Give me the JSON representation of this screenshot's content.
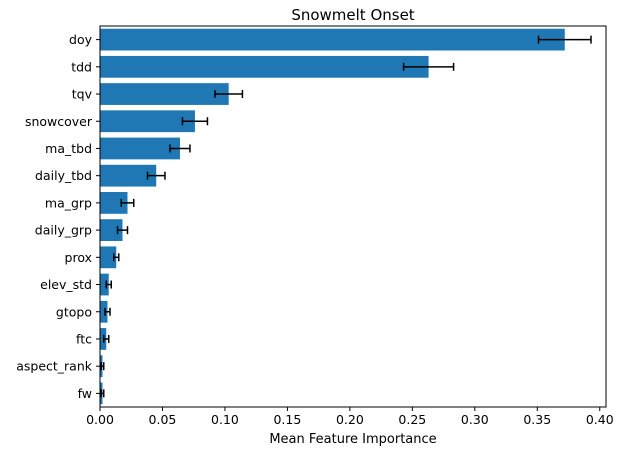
{
  "chart_data": {
    "type": "bar",
    "orientation": "horizontal",
    "title": "Snowmelt Onset",
    "xlabel": "Mean Feature Importance",
    "ylabel": "",
    "xlim": [
      0,
      0.405
    ],
    "xticks": [
      0.0,
      0.05,
      0.1,
      0.15,
      0.2,
      0.25,
      0.3,
      0.35,
      0.4
    ],
    "categories": [
      "doy",
      "tdd",
      "tqv",
      "snowcover",
      "ma_tbd",
      "daily_tbd",
      "ma_grp",
      "daily_grp",
      "prox",
      "elev_std",
      "gtopo",
      "ftc",
      "aspect_rank",
      "fw"
    ],
    "values": [
      0.372,
      0.263,
      0.103,
      0.076,
      0.064,
      0.045,
      0.022,
      0.018,
      0.013,
      0.007,
      0.006,
      0.005,
      0.002,
      0.002
    ],
    "errors": [
      0.021,
      0.02,
      0.011,
      0.01,
      0.008,
      0.007,
      0.005,
      0.004,
      0.002,
      0.002,
      0.002,
      0.002,
      0.001,
      0.001
    ],
    "bar_color": "#1f77b4",
    "error_color": "#000000",
    "grid": false,
    "legend": null
  }
}
